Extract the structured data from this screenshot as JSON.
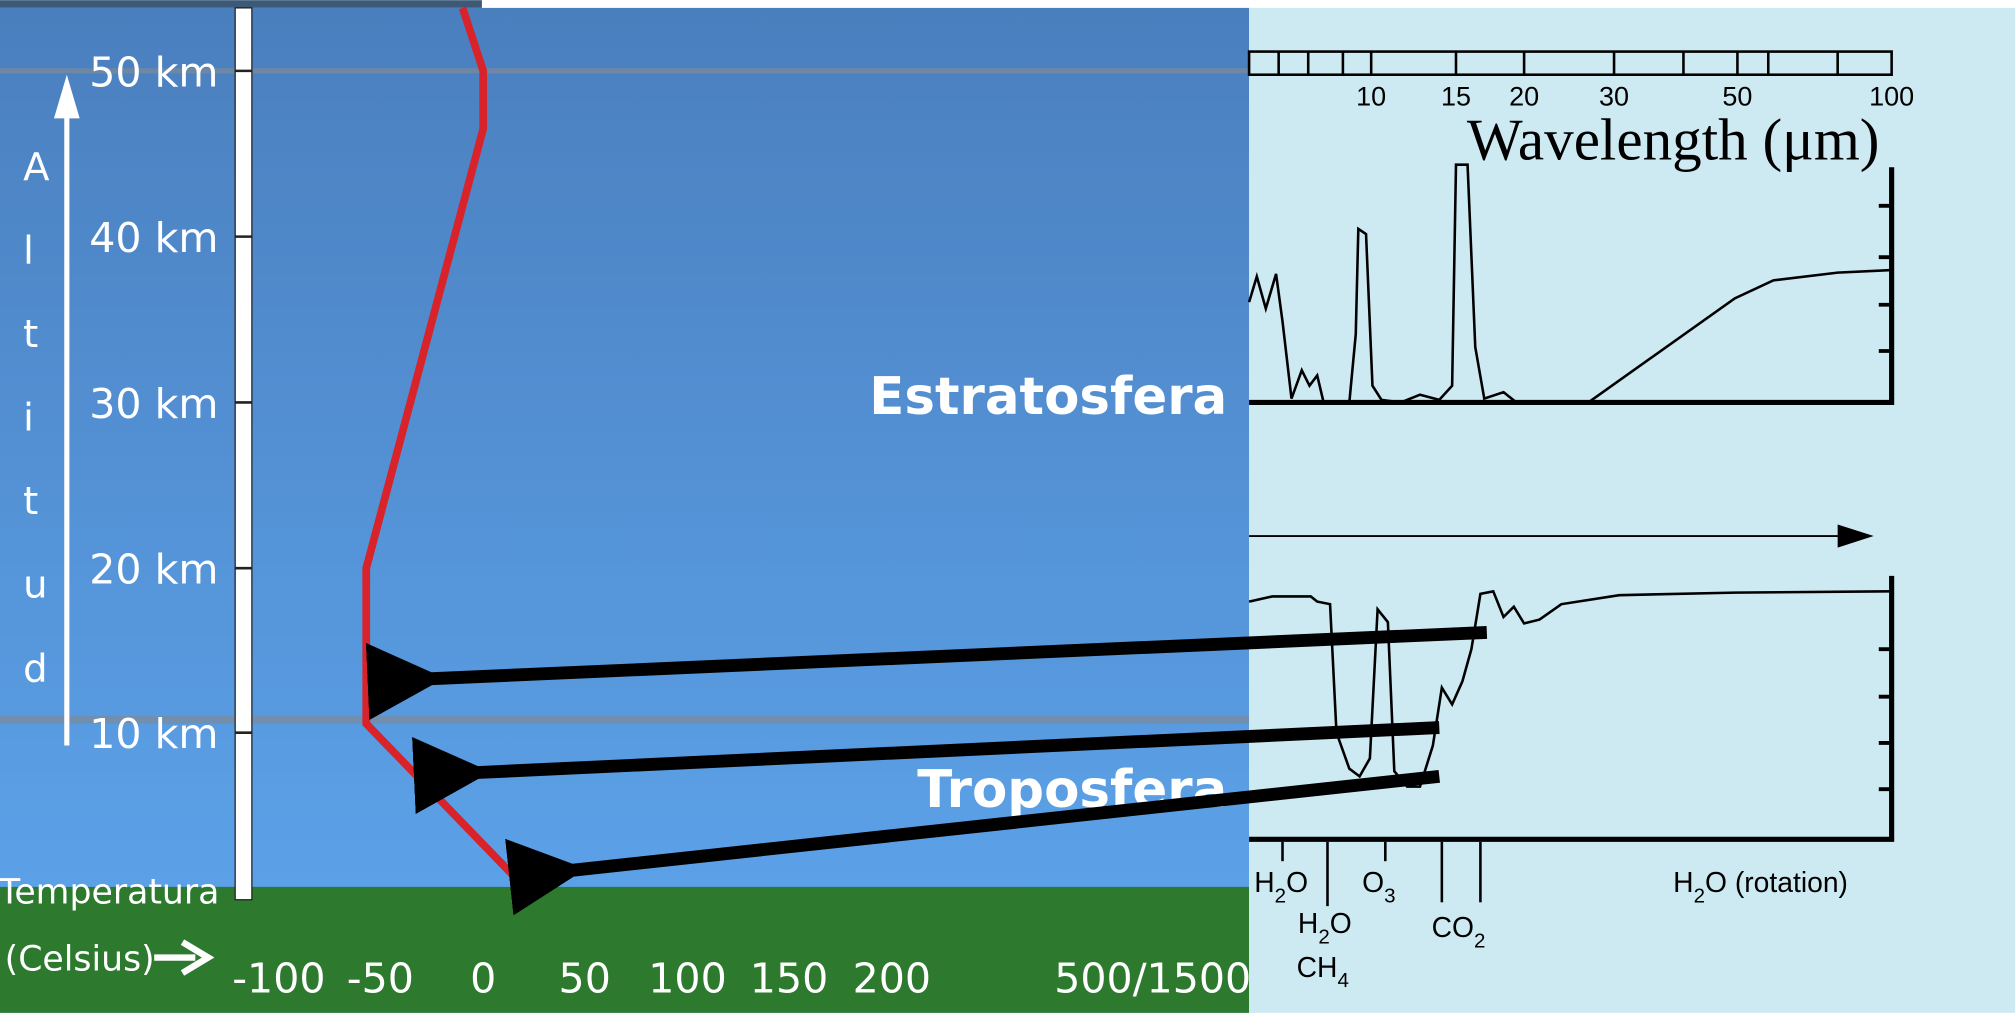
{
  "left_panel": {
    "altitude_label": "Altitud",
    "altitude_ticks": [
      "50 km",
      "40 km",
      "30 km",
      "20 km",
      "10 km"
    ],
    "layers": [
      "Estratosfera",
      "Troposfera"
    ],
    "temperature_label": [
      "Temperatura",
      "(Celsius)"
    ],
    "temperature_ticks": [
      "-100",
      "-50",
      "0",
      "50",
      "100",
      "150",
      "200",
      "500/1500"
    ]
  },
  "right_panel": {
    "wavelength_label": "Wavelength (μm)",
    "wavelength_ticks": [
      "10",
      "15",
      "20",
      "30",
      "50",
      "100"
    ],
    "gases": [
      {
        "base": "H",
        "sub": "2",
        "rest": "O"
      },
      {
        "base": "H",
        "sub": "2",
        "rest": "O"
      },
      {
        "base": "CH",
        "sub": "4",
        "rest": ""
      },
      {
        "base": "O",
        "sub": "3",
        "rest": ""
      },
      {
        "base": "CO",
        "sub": "2",
        "rest": ""
      },
      {
        "base": "H",
        "sub": "2",
        "rest": "O (rotation)"
      }
    ]
  }
}
